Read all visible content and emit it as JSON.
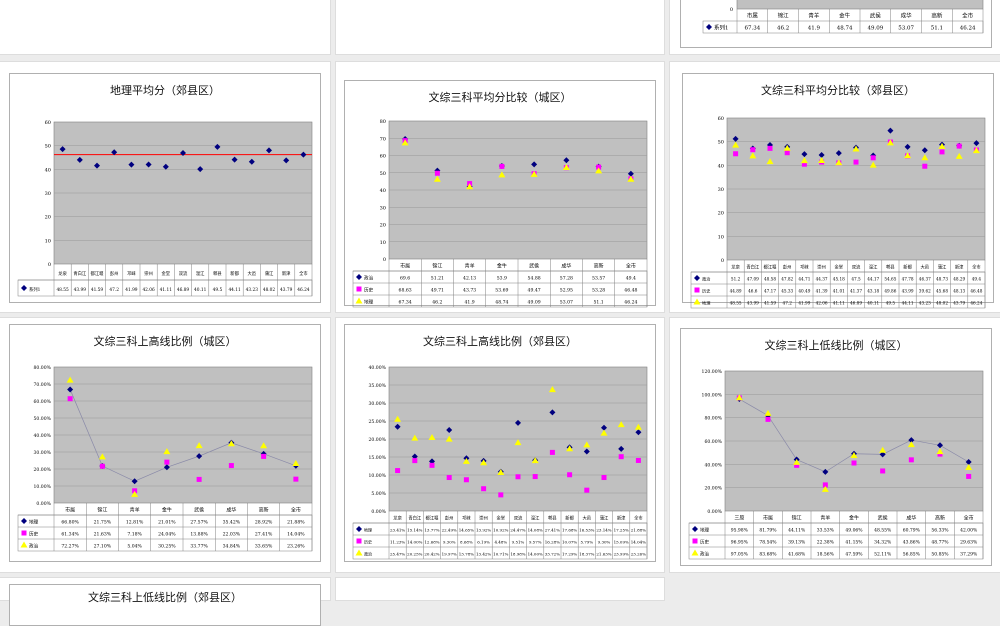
{
  "colors": {
    "plot_bg": "#c0c0c0",
    "s1": "#00007f",
    "s2": "#ff00ff",
    "s3": "#ffff00",
    "avg": "#ff0000",
    "grid": "#999999"
  },
  "chart_data": [
    {
      "id": "top-right",
      "type": "table",
      "title": "",
      "categories": [
        "市属",
        "锦江",
        "青羊",
        "金牛",
        "武侯",
        "成华",
        "高新",
        "全市"
      ],
      "ylim": [
        0,
        80
      ],
      "yticks_shown": [
        "0"
      ],
      "series": [
        {
          "name": "系列1",
          "values": [
            67.34,
            46.2,
            41.9,
            48.74,
            49.09,
            53.07,
            51.1,
            46.24
          ],
          "labels": [
            "67.34",
            "46.2",
            "41.9",
            "48.74",
            "49.09",
            "53.07",
            "51.1",
            "46.24"
          ]
        }
      ]
    },
    {
      "id": "geo-suburb",
      "type": "scatter",
      "title": "地理平均分（郊县区）",
      "categories": [
        "龙泉",
        "青白江",
        "都江堰",
        "彭州",
        "邛崃",
        "崇州",
        "金堂",
        "双流",
        "温江",
        "郫县",
        "新都",
        "大邑",
        "蒲江",
        "新津",
        "全市"
      ],
      "ylim": [
        0,
        60
      ],
      "yticks": [
        "0",
        "10",
        "20",
        "30",
        "40",
        "50",
        "60"
      ],
      "avg_line": 46.24,
      "series": [
        {
          "name": "系列1",
          "values": [
            48.55,
            43.99,
            41.59,
            47.2,
            41.99,
            42.06,
            41.11,
            46.89,
            40.11,
            49.5,
            44.11,
            43.23,
            48.02,
            43.79,
            46.24
          ],
          "labels": [
            "48.55",
            "43.99",
            "41.59",
            "47.2",
            "41.99",
            "42.06",
            "41.11",
            "46.89",
            "40.11",
            "49.5",
            "44.11",
            "43.23",
            "48.02",
            "43.79",
            "46.24"
          ]
        }
      ]
    },
    {
      "id": "avg-city",
      "type": "line",
      "title": "文综三科平均分比较（城区）",
      "categories": [
        "市属",
        "锦江",
        "青羊",
        "金牛",
        "武侯",
        "成华",
        "高新",
        "全市"
      ],
      "ylim": [
        0,
        80
      ],
      "yticks": [
        "0",
        "10",
        "20",
        "30",
        "40",
        "50",
        "60",
        "70",
        "80"
      ],
      "series": [
        {
          "name": "政治",
          "values": [
            69.6,
            51.21,
            42.13,
            53.9,
            54.88,
            57.28,
            53.57,
            49.4
          ],
          "labels": [
            "69.6",
            "51.21",
            "42.13",
            "53.9",
            "54.88",
            "57.28",
            "53.57",
            "49.4"
          ]
        },
        {
          "name": "历史",
          "values": [
            68.63,
            49.71,
            43.73,
            53.69,
            49.47,
            52.95,
            53.28,
            46.48
          ],
          "labels": [
            "68.63",
            "49.71",
            "43.73",
            "53.69",
            "49.47",
            "52.95",
            "53.28",
            "46.48"
          ]
        },
        {
          "name": "地理",
          "values": [
            67.34,
            46.2,
            41.9,
            48.74,
            49.09,
            53.07,
            51.1,
            46.24
          ],
          "labels": [
            "67.34",
            "46.2",
            "41.9",
            "48.74",
            "49.09",
            "53.07",
            "51.1",
            "46.24"
          ]
        }
      ]
    },
    {
      "id": "avg-suburb",
      "type": "line",
      "title": "文综三科平均分比较（郊县区）",
      "categories": [
        "龙泉",
        "青白江",
        "都江堰",
        "彭州",
        "邛崃",
        "崇州",
        "金堂",
        "双流",
        "温江",
        "郫县",
        "新都",
        "大邑",
        "蒲江",
        "新津",
        "全市"
      ],
      "ylim": [
        0,
        60
      ],
      "yticks": [
        "0",
        "10",
        "20",
        "30",
        "40",
        "50",
        "60"
      ],
      "series": [
        {
          "name": "政治",
          "values": [
            51.2,
            47.09,
            48.58,
            47.82,
            44.71,
            44.37,
            45.18,
            47.5,
            44.17,
            54.65,
            47.78,
            46.37,
            48.73,
            48.29,
            49.4
          ],
          "labels": [
            "51.2",
            "47.09",
            "48.58",
            "47.82",
            "44.71",
            "44.37",
            "45.18",
            "47.5",
            "44.17",
            "54.65",
            "47.78",
            "46.37",
            "48.73",
            "48.29",
            "49.4"
          ]
        },
        {
          "name": "历史",
          "values": [
            44.89,
            46.6,
            47.17,
            45.33,
            40.49,
            41.39,
            41.01,
            41.37,
            43.18,
            49.86,
            43.99,
            39.62,
            45.68,
            48.13,
            46.48
          ],
          "labels": [
            "44.89",
            "46.6",
            "47.17",
            "45.33",
            "40.49",
            "41.39",
            "41.01",
            "41.37",
            "43.18",
            "49.86",
            "43.99",
            "39.62",
            "45.68",
            "48.13",
            "46.48"
          ]
        },
        {
          "name": "地理",
          "values": [
            48.55,
            43.99,
            41.59,
            47.2,
            41.99,
            42.06,
            41.11,
            46.89,
            40.11,
            49.5,
            44.11,
            43.23,
            48.02,
            43.79,
            46.24
          ],
          "labels": [
            "48.55",
            "43.99",
            "41.59",
            "47.2",
            "41.99",
            "42.06",
            "41.11",
            "46.89",
            "40.11",
            "49.5",
            "44.11",
            "43.23",
            "48.02",
            "43.79",
            "46.24"
          ]
        }
      ]
    },
    {
      "id": "high-city",
      "type": "line",
      "title": "文综三科上高线比例（城区）",
      "categories": [
        "市属",
        "锦江",
        "青羊",
        "金牛",
        "武侯",
        "成华",
        "高新",
        "全市"
      ],
      "ylim": [
        0,
        0.8
      ],
      "yticks": [
        "0.00%",
        "10.00%",
        "20.00%",
        "30.00%",
        "40.00%",
        "50.00%",
        "60.00%",
        "70.00%",
        "80.00%"
      ],
      "series": [
        {
          "name": "地理",
          "values": [
            0.668,
            0.2175,
            0.1281,
            0.2101,
            0.2757,
            0.3542,
            0.2892,
            0.2188
          ],
          "labels": [
            "66.80%",
            "21.75%",
            "12.81%",
            "21.01%",
            "27.57%",
            "35.42%",
            "28.92%",
            "21.88%"
          ]
        },
        {
          "name": "历史",
          "values": [
            0.6134,
            0.2163,
            0.0718,
            0.2404,
            0.1388,
            0.2203,
            0.2741,
            0.1404
          ],
          "labels": [
            "61.34%",
            "21.63%",
            "7.18%",
            "24.04%",
            "13.88%",
            "22.03%",
            "27.41%",
            "14.04%"
          ]
        },
        {
          "name": "政治",
          "values": [
            0.7227,
            0.271,
            0.0504,
            0.3025,
            0.3377,
            0.3484,
            0.3365,
            0.2326
          ],
          "labels": [
            "72.27%",
            "27.10%",
            "5.04%",
            "30.25%",
            "33.77%",
            "34.84%",
            "33.65%",
            "23.26%"
          ]
        }
      ]
    },
    {
      "id": "high-suburb",
      "type": "line",
      "title": "文综三科上高线比例（郊县区）",
      "categories": [
        "龙泉",
        "青白江",
        "都江堰",
        "彭州",
        "邛崃",
        "崇州",
        "金堂",
        "双流",
        "温江",
        "郫县",
        "新都",
        "大邑",
        "蒲江",
        "新津",
        "全市"
      ],
      "ylim": [
        0,
        0.4
      ],
      "yticks": [
        "0.00%",
        "5.00%",
        "10.00%",
        "15.00%",
        "20.00%",
        "25.00%",
        "30.00%",
        "35.00%",
        "40.00%"
      ],
      "series": [
        {
          "name": "地理",
          "values": [
            0.2341,
            0.1514,
            0.1377,
            0.2249,
            0.1465,
            0.1392,
            0.1092,
            0.2447,
            0.1408,
            0.2741,
            0.1768,
            0.1653,
            0.2314,
            0.1725,
            0.2188
          ],
          "labels": [
            "23.41%",
            "15.14%",
            "13.77%",
            "22.49%",
            "14.65%",
            "13.92%",
            "10.92%",
            "24.47%",
            "14.08%",
            "27.41%",
            "17.68%",
            "16.53%",
            "23.14%",
            "17.25%",
            "21.88%"
          ]
        },
        {
          "name": "历史",
          "values": [
            0.1123,
            0.14,
            0.1268,
            0.093,
            0.0868,
            0.0619,
            0.0448,
            0.0951,
            0.0957,
            0.1628,
            0.1007,
            0.0579,
            0.093,
            0.1509,
            0.1404
          ],
          "labels": [
            "11.23%",
            "14.00%",
            "12.68%",
            "9.30%",
            "8.68%",
            "6.19%",
            "4.48%",
            "9.51%",
            "9.57%",
            "16.28%",
            "10.07%",
            "5.79%",
            "9.30%",
            "15.09%",
            "14.04%"
          ]
        },
        {
          "name": "政治",
          "values": [
            0.2547,
            0.2025,
            0.2042,
            0.1997,
            0.1378,
            0.1342,
            0.1071,
            0.1898,
            0.14,
            0.3372,
            0.1729,
            0.1837,
            0.2163,
            0.2399,
            0.2326
          ],
          "labels": [
            "25.47%",
            "20.25%",
            "20.42%",
            "19.97%",
            "13.78%",
            "13.42%",
            "10.71%",
            "18.98%",
            "14.00%",
            "33.72%",
            "17.29%",
            "18.37%",
            "21.63%",
            "23.99%",
            "23.26%"
          ]
        }
      ]
    },
    {
      "id": "low-city",
      "type": "line",
      "title": "文综三科上低线比例（城区）",
      "categories": [
        "三原",
        "市属",
        "锦江",
        "青羊",
        "金牛",
        "武侯",
        "成华",
        "高新",
        "全市"
      ],
      "ylim": [
        0,
        1.2
      ],
      "yticks": [
        "0.00%",
        "20.00%",
        "40.00%",
        "60.00%",
        "80.00%",
        "100.00%",
        "120.00%"
      ],
      "series": [
        {
          "name": "地理",
          "values": [
            0.9598,
            0.8179,
            0.4411,
            0.3353,
            0.4906,
            0.4855,
            0.6079,
            0.5633,
            0.42
          ],
          "labels": [
            "95.98%",
            "81.79%",
            "44.11%",
            "33.53%",
            "49.06%",
            "48.55%",
            "60.79%",
            "56.33%",
            "42.00%"
          ]
        },
        {
          "name": "历史",
          "values": [
            0.9695,
            0.7854,
            0.3913,
            0.2238,
            0.4115,
            0.3432,
            0.4386,
            0.4877,
            0.2963
          ],
          "labels": [
            "96.95%",
            "78.54%",
            "39.13%",
            "22.38%",
            "41.15%",
            "34.32%",
            "43.86%",
            "48.77%",
            "29.63%"
          ]
        },
        {
          "name": "政治",
          "values": [
            0.9705,
            0.8368,
            0.4168,
            0.1856,
            0.4759,
            0.5211,
            0.5685,
            0.5085,
            0.3729
          ],
          "labels": [
            "97.05%",
            "83.68%",
            "41.68%",
            "18.56%",
            "47.59%",
            "52.11%",
            "56.85%",
            "50.85%",
            "37.29%"
          ]
        }
      ]
    },
    {
      "id": "low-suburb",
      "type": "line",
      "title": "文综三科上低线比例（郊县区）",
      "categories": [],
      "series": []
    }
  ]
}
